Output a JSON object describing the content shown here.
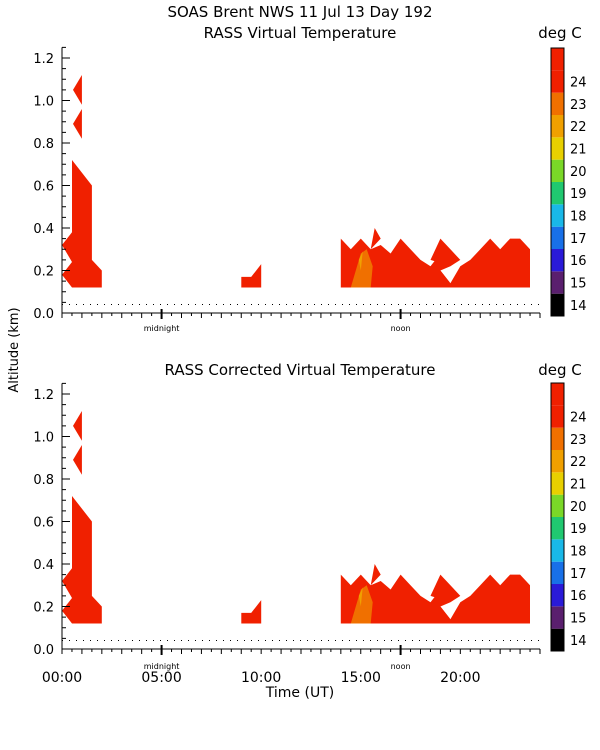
{
  "header": {
    "line1": "SOAS Brent NWS  11 Jul 13 Day 192"
  },
  "chart_data": [
    {
      "type": "heatmap",
      "title": "RASS Virtual Temperature",
      "colorbar_label": "deg C",
      "ylabel": "Altitude (km)",
      "xlabel": "",
      "x_units": "hours UT",
      "xlim": [
        0,
        24
      ],
      "ylim": [
        0,
        1.25
      ],
      "y_ticks": [
        "0.0",
        "0.2",
        "0.4",
        "0.6",
        "0.8",
        "1.0",
        "1.2"
      ],
      "x_markers": [
        {
          "label": "midnight",
          "x": 5
        },
        {
          "label": "noon",
          "x": 17
        }
      ],
      "reference_altitude_dotted": 0.04,
      "colorbar": {
        "levels": [
          14,
          15,
          16,
          17,
          18,
          19,
          20,
          21,
          22,
          23,
          24
        ],
        "colors": [
          "#000000",
          "#5a1f6e",
          "#2a1ad8",
          "#1870e8",
          "#19b8e8",
          "#20c870",
          "#7ad828",
          "#e8d000",
          "#f0a000",
          "#f07000",
          "#f02000",
          "#f02000"
        ]
      },
      "regions": [
        {
          "value": 24,
          "points": [
            [
              0.55,
              1.05
            ],
            [
              1.0,
              1.12
            ],
            [
              1.0,
              0.98
            ]
          ]
        },
        {
          "value": 24,
          "points": [
            [
              0.55,
              0.89
            ],
            [
              1.0,
              0.96
            ],
            [
              1.0,
              0.82
            ]
          ]
        },
        {
          "value": 24,
          "points": [
            [
              0.5,
              0.72
            ],
            [
              1.5,
              0.6
            ],
            [
              1.5,
              0.25
            ],
            [
              2.0,
              0.2
            ],
            [
              2.0,
              0.12
            ],
            [
              0.5,
              0.12
            ],
            [
              0,
              0.18
            ],
            [
              0.5,
              0.24
            ],
            [
              0,
              0.32
            ],
            [
              0.5,
              0.38
            ]
          ]
        },
        {
          "value": 24,
          "points": [
            [
              9.0,
              0.17
            ],
            [
              9.5,
              0.17
            ],
            [
              10.0,
              0.23
            ],
            [
              10.0,
              0.12
            ],
            [
              9.0,
              0.12
            ]
          ]
        },
        {
          "value": 24,
          "points": [
            [
              14.0,
              0.35
            ],
            [
              14.5,
              0.3
            ],
            [
              15.0,
              0.35
            ],
            [
              15.5,
              0.3
            ],
            [
              15.7,
              0.4
            ],
            [
              16.0,
              0.35
            ],
            [
              15.5,
              0.3
            ],
            [
              16.0,
              0.32
            ],
            [
              16.5,
              0.28
            ],
            [
              17.0,
              0.35
            ],
            [
              17.5,
              0.3
            ],
            [
              18.0,
              0.25
            ],
            [
              18.5,
              0.22
            ],
            [
              19.0,
              0.28
            ],
            [
              19.5,
              0.22
            ],
            [
              19.0,
              0.2
            ],
            [
              19.5,
              0.14
            ],
            [
              20.0,
              0.22
            ],
            [
              20.5,
              0.25
            ],
            [
              21.0,
              0.3
            ],
            [
              21.5,
              0.35
            ],
            [
              22.0,
              0.3
            ],
            [
              22.5,
              0.35
            ],
            [
              23.0,
              0.35
            ],
            [
              23.5,
              0.3
            ],
            [
              23.5,
              0.12
            ],
            [
              14.0,
              0.12
            ]
          ]
        },
        {
          "value": 24,
          "points": [
            [
              18.5,
              0.22
            ],
            [
              19.5,
              0.14
            ],
            [
              19.0,
              0.2
            ]
          ]
        },
        {
          "value": 24,
          "points": [
            [
              18.5,
              0.25
            ],
            [
              19.0,
              0.35
            ],
            [
              19.5,
              0.3
            ],
            [
              20.0,
              0.25
            ],
            [
              19.5,
              0.22
            ]
          ]
        },
        {
          "value": 23,
          "points": [
            [
              14.5,
              0.12
            ],
            [
              15.0,
              0.28
            ],
            [
              15.3,
              0.3
            ],
            [
              15.6,
              0.22
            ],
            [
              15.5,
              0.12
            ]
          ]
        },
        {
          "value": 22,
          "points": [
            [
              14.9,
              0.25
            ],
            [
              15.1,
              0.29
            ],
            [
              15.0,
              0.2
            ]
          ]
        }
      ]
    },
    {
      "type": "heatmap",
      "title": "RASS Corrected Virtual Temperature",
      "colorbar_label": "deg C",
      "ylabel": "Altitude (km)",
      "xlabel": "Time (UT)",
      "x_units": "hours UT",
      "xlim": [
        0,
        24
      ],
      "ylim": [
        0,
        1.25
      ],
      "y_ticks": [
        "0.0",
        "0.2",
        "0.4",
        "0.6",
        "0.8",
        "1.0",
        "1.2"
      ],
      "x_tick_labels": [
        "00:00",
        "05:00",
        "10:00",
        "15:00",
        "20:00"
      ],
      "x_tick_values": [
        0,
        5,
        10,
        15,
        20
      ],
      "x_markers": [
        {
          "label": "midnight",
          "x": 5
        },
        {
          "label": "noon",
          "x": 17
        }
      ],
      "reference_altitude_dotted": 0.04,
      "colorbar": {
        "levels": [
          14,
          15,
          16,
          17,
          18,
          19,
          20,
          21,
          22,
          23,
          24
        ],
        "colors": [
          "#000000",
          "#5a1f6e",
          "#2a1ad8",
          "#1870e8",
          "#19b8e8",
          "#20c870",
          "#7ad828",
          "#e8d000",
          "#f0a000",
          "#f07000",
          "#f02000",
          "#f02000"
        ]
      },
      "regions": [
        {
          "value": 24,
          "points": [
            [
              0.55,
              1.05
            ],
            [
              1.0,
              1.12
            ],
            [
              1.0,
              0.98
            ]
          ]
        },
        {
          "value": 24,
          "points": [
            [
              0.55,
              0.89
            ],
            [
              1.0,
              0.96
            ],
            [
              1.0,
              0.82
            ]
          ]
        },
        {
          "value": 24,
          "points": [
            [
              0.5,
              0.72
            ],
            [
              1.5,
              0.6
            ],
            [
              1.5,
              0.25
            ],
            [
              2.0,
              0.2
            ],
            [
              2.0,
              0.12
            ],
            [
              0.5,
              0.12
            ],
            [
              0,
              0.18
            ],
            [
              0.5,
              0.24
            ],
            [
              0,
              0.32
            ],
            [
              0.5,
              0.38
            ]
          ]
        },
        {
          "value": 24,
          "points": [
            [
              9.0,
              0.17
            ],
            [
              9.5,
              0.17
            ],
            [
              10.0,
              0.23
            ],
            [
              10.0,
              0.12
            ],
            [
              9.0,
              0.12
            ]
          ]
        },
        {
          "value": 24,
          "points": [
            [
              14.0,
              0.35
            ],
            [
              14.5,
              0.3
            ],
            [
              15.0,
              0.35
            ],
            [
              15.5,
              0.3
            ],
            [
              15.7,
              0.4
            ],
            [
              16.0,
              0.35
            ],
            [
              15.5,
              0.3
            ],
            [
              16.0,
              0.32
            ],
            [
              16.5,
              0.28
            ],
            [
              17.0,
              0.35
            ],
            [
              17.5,
              0.3
            ],
            [
              18.0,
              0.25
            ],
            [
              18.5,
              0.22
            ],
            [
              19.0,
              0.28
            ],
            [
              19.5,
              0.22
            ],
            [
              19.0,
              0.2
            ],
            [
              19.5,
              0.14
            ],
            [
              20.0,
              0.22
            ],
            [
              20.5,
              0.25
            ],
            [
              21.0,
              0.3
            ],
            [
              21.5,
              0.35
            ],
            [
              22.0,
              0.3
            ],
            [
              22.5,
              0.35
            ],
            [
              23.0,
              0.35
            ],
            [
              23.5,
              0.3
            ],
            [
              23.5,
              0.12
            ],
            [
              14.0,
              0.12
            ]
          ]
        },
        {
          "value": 24,
          "points": [
            [
              18.5,
              0.22
            ],
            [
              19.5,
              0.14
            ],
            [
              19.0,
              0.2
            ]
          ]
        },
        {
          "value": 24,
          "points": [
            [
              18.5,
              0.25
            ],
            [
              19.0,
              0.35
            ],
            [
              19.5,
              0.3
            ],
            [
              20.0,
              0.25
            ],
            [
              19.5,
              0.22
            ]
          ]
        },
        {
          "value": 23,
          "points": [
            [
              14.5,
              0.12
            ],
            [
              15.0,
              0.28
            ],
            [
              15.3,
              0.3
            ],
            [
              15.6,
              0.22
            ],
            [
              15.5,
              0.12
            ]
          ]
        },
        {
          "value": 22,
          "points": [
            [
              14.9,
              0.25
            ],
            [
              15.1,
              0.29
            ],
            [
              15.0,
              0.2
            ]
          ]
        }
      ]
    }
  ]
}
